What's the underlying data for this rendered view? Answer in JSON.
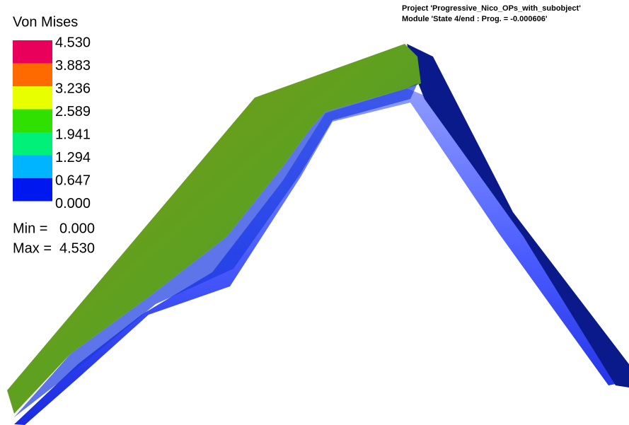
{
  "legend": {
    "title": "Von Mises",
    "labels": [
      "4.530",
      "3.883",
      "3.236",
      "2.589",
      "1.941",
      "1.294",
      "0.647",
      "0.000"
    ],
    "colors": [
      "#e8005a",
      "#ff6a00",
      "#e8ff00",
      "#30e000",
      "#00f07a",
      "#00b4ff",
      "#0018f0"
    ]
  },
  "min": {
    "label": "Min =",
    "value": "0.000"
  },
  "max": {
    "label": "Max =",
    "value": "4.530"
  },
  "header": {
    "project": "Project 'Progressive_Nico_OPs_with_subobject'",
    "module": "Module 'State 4/end : Prog. = -0.000606'"
  }
}
